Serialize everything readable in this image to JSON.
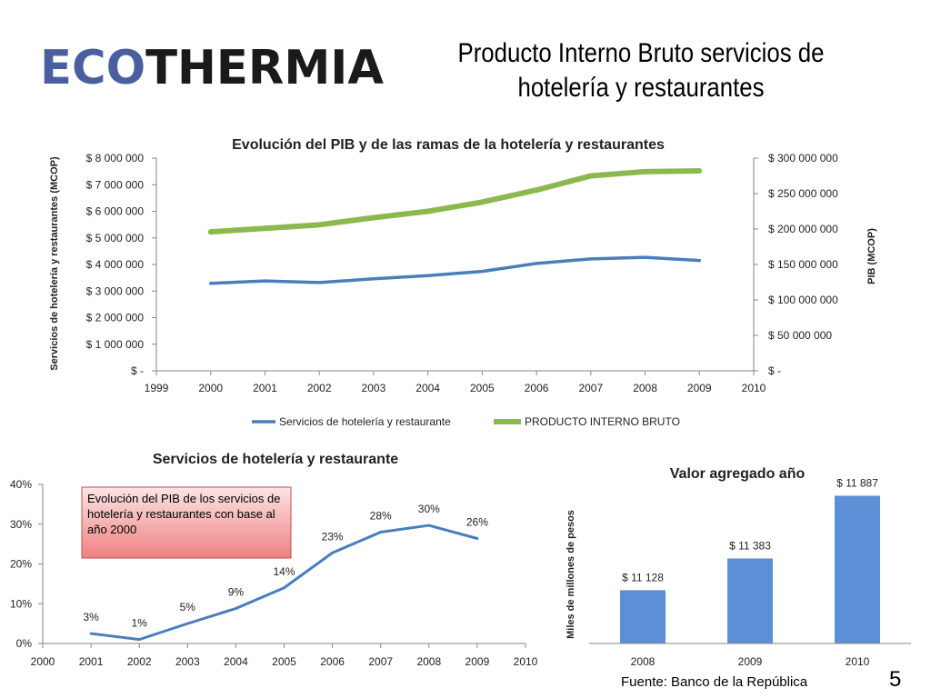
{
  "logo": {
    "part1": "ECO",
    "part2": "THERMIA",
    "colors": {
      "part1": "#4a5fa0",
      "part2": "#1a1a1a"
    }
  },
  "slide_title": "Producto Interno Bruto servicios de hotelería y restaurantes",
  "source": "Fuente: Banco de la República",
  "page_number": "5",
  "chart_data": [
    {
      "type": "line",
      "title": "Evolución del PIB y de las ramas de la hotelería y restaurantes",
      "xlabel": "",
      "ylabel": "Servicios de hotelería y restaurantes (MCOP)",
      "y2label": "PIB (MCOP)",
      "xlim": [
        1999,
        2010
      ],
      "xticks": [
        "1999",
        "2000",
        "2001",
        "2002",
        "2003",
        "2004",
        "2005",
        "2006",
        "2007",
        "2008",
        "2009",
        "2010"
      ],
      "ylim": [
        0,
        8000000
      ],
      "yticks": [
        "$ -",
        "$ 1 000 000",
        "$ 2 000 000",
        "$ 3 000 000",
        "$ 4 000 000",
        "$ 5 000 000",
        "$ 6 000 000",
        "$ 7 000 000",
        "$ 8 000 000"
      ],
      "y2lim": [
        0,
        300000000
      ],
      "y2ticks": [
        "$ -",
        "$ 50 000 000",
        "$ 100 000 000",
        "$ 150 000 000",
        "$ 200 000 000",
        "$ 250 000 000",
        "$ 300 000 000"
      ],
      "x": [
        2000,
        2001,
        2002,
        2003,
        2004,
        2005,
        2006,
        2007,
        2008,
        2009
      ],
      "series": [
        {
          "name": "Servicios de hotelería y restaurante",
          "axis": "left",
          "color": "#4a7ebb",
          "values": [
            3290000,
            3380000,
            3320000,
            3460000,
            3580000,
            3740000,
            4040000,
            4210000,
            4270000,
            4150000
          ]
        },
        {
          "name": "PRODUCTO INTERNO BRUTO",
          "axis": "right",
          "color": "#8cb94e",
          "values": [
            196000000,
            201000000,
            206000000,
            216000000,
            225000000,
            238000000,
            255000000,
            275000000,
            281000000,
            282000000
          ]
        }
      ],
      "legend": "bottom",
      "grid": false
    },
    {
      "type": "line",
      "title": "Servicios de hotelería y restaurante",
      "xlim": [
        2000,
        2010
      ],
      "xticks": [
        "2000",
        "2001",
        "2002",
        "2003",
        "2004",
        "2005",
        "2006",
        "2007",
        "2008",
        "2009",
        "2010"
      ],
      "ylim": [
        0,
        40
      ],
      "yticks": [
        "0%",
        "10%",
        "20%",
        "30%",
        "40%"
      ],
      "x": [
        2001,
        2002,
        2003,
        2004,
        2005,
        2006,
        2007,
        2008,
        2009
      ],
      "values": [
        2.5,
        1.0,
        5.0,
        8.8,
        14.0,
        22.8,
        28.0,
        29.7,
        26.4
      ],
      "labels": [
        "3%",
        "1%",
        "5%",
        "9%",
        "14%",
        "23%",
        "28%",
        "30%",
        "26%"
      ],
      "color": "#4a7ebb",
      "annotation": "Evolución del PIB de los servicios de hotelería y restaurantes con base al año 2000",
      "grid": false
    },
    {
      "type": "bar",
      "title": "Valor agregado año",
      "ylabel": "Miles de millones de pesos",
      "categories": [
        "2008",
        "2009",
        "2010"
      ],
      "values": [
        11128,
        11383,
        11887
      ],
      "labels": [
        "$ 11 128",
        "$ 11 383",
        "$ 11 887"
      ],
      "ylim": [
        10700,
        12000
      ],
      "color": "#5b8fd6",
      "grid": false
    }
  ]
}
